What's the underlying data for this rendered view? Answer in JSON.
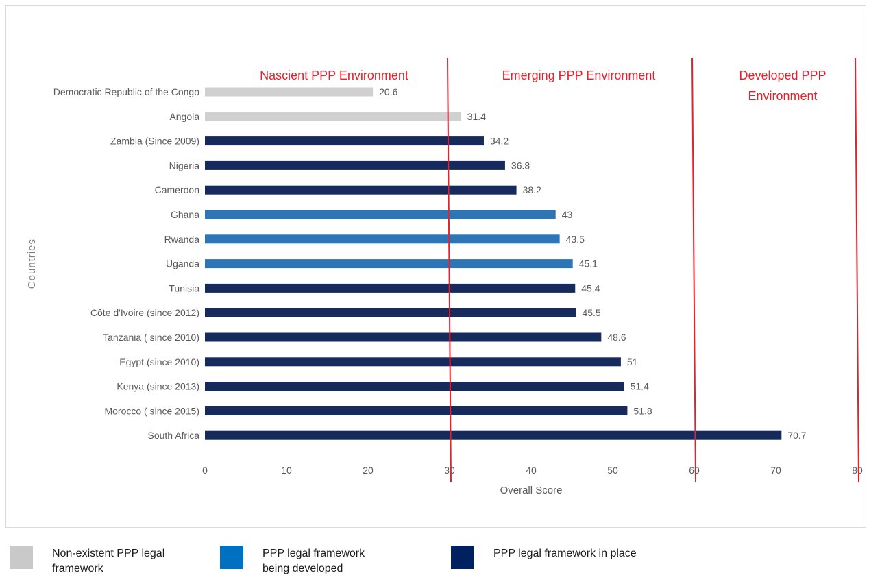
{
  "chart_data": {
    "type": "bar",
    "orientation": "horizontal",
    "categories": [
      "Democratic Republic of the Congo",
      "Angola",
      "Zambia  (Since 2009)",
      "Nigeria",
      "Cameroon",
      "Ghana",
      "Rwanda",
      "Uganda",
      "Tunisia",
      "Côte d'Ivoire (since 2012)",
      "Tanzania ( since 2010)",
      "Egypt  (since 2010)",
      "Kenya  (since 2013)",
      "Morocco  ( since 2015)",
      "South Africa"
    ],
    "values": [
      20.6,
      31.4,
      34.2,
      36.8,
      38.2,
      43,
      43.5,
      45.1,
      45.4,
      45.5,
      48.6,
      51,
      51.4,
      51.8,
      70.7
    ],
    "value_labels": [
      "20.6",
      "31.4",
      "34.2",
      "36.8",
      "38.2",
      "43",
      "43.5",
      "45.1",
      "45.4",
      "45.5",
      "48.6",
      "51",
      "51.4",
      "51.8",
      "70.7"
    ],
    "groups": [
      "none",
      "none",
      "place",
      "place",
      "place",
      "dev",
      "dev",
      "dev",
      "place",
      "place",
      "place",
      "place",
      "place",
      "place",
      "place"
    ],
    "xlabel": "Overall Score",
    "ylabel": "Countries",
    "xlim": [
      0,
      80
    ],
    "xticks": [
      "0",
      "10",
      "20",
      "30",
      "40",
      "50",
      "60",
      "70",
      "80"
    ],
    "grid": false,
    "legend_position": "bottom",
    "thresholds": [
      30,
      60,
      80
    ],
    "zones": [
      {
        "lines": [
          "Nascient PPP Environment"
        ]
      },
      {
        "lines": [
          "Emerging PPP Environment"
        ]
      },
      {
        "lines": [
          "Developed PPP",
          "Environment"
        ]
      }
    ],
    "colors": {
      "none": "#d0d0d0",
      "dev": "#2e75b6",
      "place": "#172a5c",
      "threshold": "#e8202a"
    }
  },
  "legend": [
    {
      "key": "none",
      "lines": [
        "Non-existent PPP legal",
        "framework"
      ],
      "color": "#c9c9c9"
    },
    {
      "key": "dev",
      "lines": [
        "PPP legal framework",
        "being developed"
      ],
      "color": "#0070c0"
    },
    {
      "key": "place",
      "lines": [
        "PPP legal framework in place"
      ],
      "color": "#002060"
    }
  ]
}
